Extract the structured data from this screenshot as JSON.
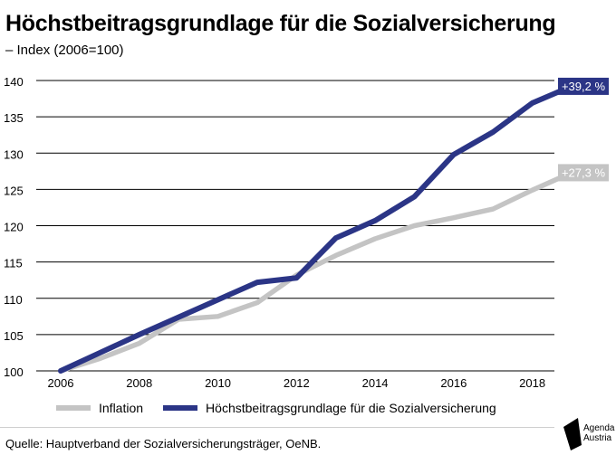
{
  "title": "Höchstbeitragsgrundlage für die Sozialversicherung",
  "subtitle": "– Index (2006=100)",
  "legend": {
    "inflation": "Inflation",
    "hbgl": "Höchstbeitragsgrundlage für die Sozialversicherung"
  },
  "source": "Quelle: Hauptverband der Sozialversicherungsträger, OeNB.",
  "logo": {
    "line1": "Agenda",
    "line2": "Austria"
  },
  "colors": {
    "navy": "#2b3586",
    "gray": "#c4c4c4",
    "grid": "#000000"
  },
  "chart_data": {
    "type": "line",
    "x": [
      2006,
      2007,
      2008,
      2009,
      2010,
      2011,
      2012,
      2013,
      2014,
      2015,
      2016,
      2017,
      2018,
      2019
    ],
    "xticks": [
      2006,
      2008,
      2010,
      2012,
      2014,
      2016,
      2018
    ],
    "yticks": [
      100,
      105,
      110,
      115,
      120,
      125,
      130,
      135,
      140
    ],
    "xlim": [
      2006,
      2019
    ],
    "ylim": [
      100,
      140
    ],
    "series": [
      {
        "key": "inflation",
        "name": "Inflation",
        "color": "#c4c4c4",
        "values": [
          100,
          101.7,
          103.8,
          107.1,
          107.5,
          109.4,
          113.2,
          115.9,
          118.2,
          120.0,
          121.1,
          122.3,
          124.9,
          127.3
        ],
        "end_label": "+27,3 %"
      },
      {
        "key": "hbgl",
        "name": "Höchstbeitragsgrundlage für die Sozialversicherung",
        "color": "#2b3586",
        "values": [
          100,
          102.5,
          105.0,
          107.4,
          109.8,
          112.2,
          112.8,
          118.3,
          120.7,
          124.0,
          129.8,
          132.9,
          136.9,
          139.2
        ],
        "end_label": "+39,2 %"
      }
    ],
    "grid": true,
    "legend_position": "bottom"
  }
}
